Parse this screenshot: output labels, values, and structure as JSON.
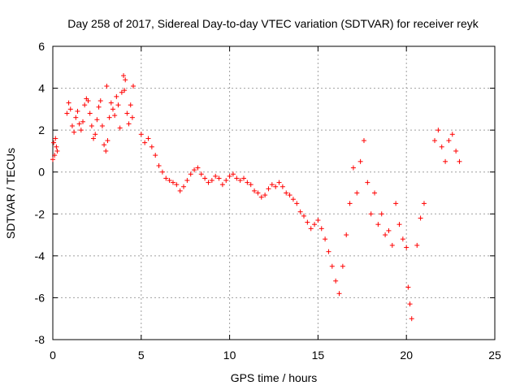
{
  "chart_data": {
    "type": "scatter",
    "title": "Day 258 of 2017, Sidereal Day-to-day VTEC variation (SDTVAR) for receiver reyk",
    "xlabel": "GPS time / hours",
    "ylabel": "SDTVAR / TECUs",
    "xlim": [
      0,
      25
    ],
    "ylim": [
      -8,
      6
    ],
    "xticks": [
      0,
      5,
      10,
      15,
      20,
      25
    ],
    "yticks": [
      -8,
      -6,
      -4,
      -2,
      0,
      2,
      4,
      6
    ],
    "grid": true,
    "marker": "+",
    "series": [
      {
        "name": "SDTVAR",
        "color": "#ff0000",
        "points": [
          [
            0.0,
            0.6
          ],
          [
            0.05,
            1.4
          ],
          [
            0.1,
            0.8
          ],
          [
            0.15,
            1.6
          ],
          [
            0.2,
            1.2
          ],
          [
            0.25,
            1.0
          ],
          [
            0.8,
            2.8
          ],
          [
            0.9,
            3.3
          ],
          [
            1.0,
            3.0
          ],
          [
            1.1,
            2.2
          ],
          [
            1.2,
            1.9
          ],
          [
            1.3,
            2.6
          ],
          [
            1.4,
            2.9
          ],
          [
            1.5,
            2.3
          ],
          [
            1.6,
            2.0
          ],
          [
            1.7,
            2.4
          ],
          [
            1.8,
            3.2
          ],
          [
            1.9,
            3.5
          ],
          [
            2.0,
            3.4
          ],
          [
            2.1,
            2.8
          ],
          [
            2.2,
            2.2
          ],
          [
            2.3,
            1.6
          ],
          [
            2.4,
            1.8
          ],
          [
            2.5,
            2.5
          ],
          [
            2.6,
            3.1
          ],
          [
            2.7,
            3.4
          ],
          [
            2.8,
            2.2
          ],
          [
            2.9,
            1.3
          ],
          [
            3.0,
            1.0
          ],
          [
            3.05,
            4.1
          ],
          [
            3.1,
            1.5
          ],
          [
            3.2,
            2.6
          ],
          [
            3.3,
            3.3
          ],
          [
            3.4,
            3.0
          ],
          [
            3.5,
            2.7
          ],
          [
            3.6,
            3.6
          ],
          [
            3.7,
            3.2
          ],
          [
            3.8,
            2.1
          ],
          [
            3.9,
            3.8
          ],
          [
            4.0,
            4.6
          ],
          [
            4.05,
            3.9
          ],
          [
            4.1,
            4.4
          ],
          [
            4.2,
            2.8
          ],
          [
            4.3,
            2.3
          ],
          [
            4.4,
            3.2
          ],
          [
            4.5,
            2.6
          ],
          [
            4.55,
            4.1
          ],
          [
            5.0,
            1.8
          ],
          [
            5.2,
            1.4
          ],
          [
            5.4,
            1.6
          ],
          [
            5.6,
            1.2
          ],
          [
            5.8,
            0.8
          ],
          [
            6.0,
            0.3
          ],
          [
            6.2,
            0.0
          ],
          [
            6.4,
            -0.3
          ],
          [
            6.6,
            -0.4
          ],
          [
            6.8,
            -0.5
          ],
          [
            7.0,
            -0.6
          ],
          [
            7.2,
            -0.9
          ],
          [
            7.4,
            -0.7
          ],
          [
            7.6,
            -0.4
          ],
          [
            7.8,
            -0.1
          ],
          [
            8.0,
            0.1
          ],
          [
            8.2,
            0.2
          ],
          [
            8.4,
            -0.1
          ],
          [
            8.6,
            -0.3
          ],
          [
            8.8,
            -0.5
          ],
          [
            9.0,
            -0.4
          ],
          [
            9.2,
            -0.2
          ],
          [
            9.4,
            -0.3
          ],
          [
            9.6,
            -0.6
          ],
          [
            9.8,
            -0.4
          ],
          [
            10.0,
            -0.2
          ],
          [
            10.2,
            -0.1
          ],
          [
            10.4,
            -0.3
          ],
          [
            10.6,
            -0.4
          ],
          [
            10.8,
            -0.3
          ],
          [
            11.0,
            -0.5
          ],
          [
            11.2,
            -0.6
          ],
          [
            11.4,
            -0.9
          ],
          [
            11.6,
            -1.0
          ],
          [
            11.8,
            -1.2
          ],
          [
            12.0,
            -1.1
          ],
          [
            12.2,
            -0.8
          ],
          [
            12.4,
            -0.6
          ],
          [
            12.6,
            -0.7
          ],
          [
            12.8,
            -0.5
          ],
          [
            13.0,
            -0.7
          ],
          [
            13.2,
            -1.0
          ],
          [
            13.4,
            -1.1
          ],
          [
            13.6,
            -1.3
          ],
          [
            13.8,
            -1.5
          ],
          [
            14.0,
            -1.9
          ],
          [
            14.2,
            -2.1
          ],
          [
            14.4,
            -2.4
          ],
          [
            14.6,
            -2.7
          ],
          [
            14.8,
            -2.5
          ],
          [
            15.0,
            -2.3
          ],
          [
            15.2,
            -2.7
          ],
          [
            15.4,
            -3.2
          ],
          [
            15.6,
            -3.8
          ],
          [
            15.8,
            -4.5
          ],
          [
            16.0,
            -5.2
          ],
          [
            16.2,
            -5.8
          ],
          [
            16.4,
            -4.5
          ],
          [
            16.6,
            -3.0
          ],
          [
            16.8,
            -1.5
          ],
          [
            17.0,
            0.2
          ],
          [
            17.2,
            -1.0
          ],
          [
            17.4,
            0.5
          ],
          [
            17.6,
            1.5
          ],
          [
            17.8,
            -0.5
          ],
          [
            18.0,
            -2.0
          ],
          [
            18.2,
            -1.0
          ],
          [
            18.4,
            -2.5
          ],
          [
            18.6,
            -2.0
          ],
          [
            18.8,
            -3.0
          ],
          [
            19.0,
            -2.8
          ],
          [
            19.2,
            -3.5
          ],
          [
            19.4,
            -1.5
          ],
          [
            19.6,
            -2.5
          ],
          [
            19.8,
            -3.2
          ],
          [
            20.0,
            -3.6
          ],
          [
            20.1,
            -5.5
          ],
          [
            20.2,
            -6.3
          ],
          [
            20.3,
            -7.0
          ],
          [
            20.6,
            -3.5
          ],
          [
            20.8,
            -2.2
          ],
          [
            21.0,
            -1.5
          ],
          [
            21.6,
            1.5
          ],
          [
            21.8,
            2.0
          ],
          [
            22.0,
            1.2
          ],
          [
            22.2,
            0.5
          ],
          [
            22.4,
            1.5
          ],
          [
            22.6,
            1.8
          ],
          [
            22.8,
            1.0
          ],
          [
            23.0,
            0.5
          ]
        ]
      }
    ]
  }
}
